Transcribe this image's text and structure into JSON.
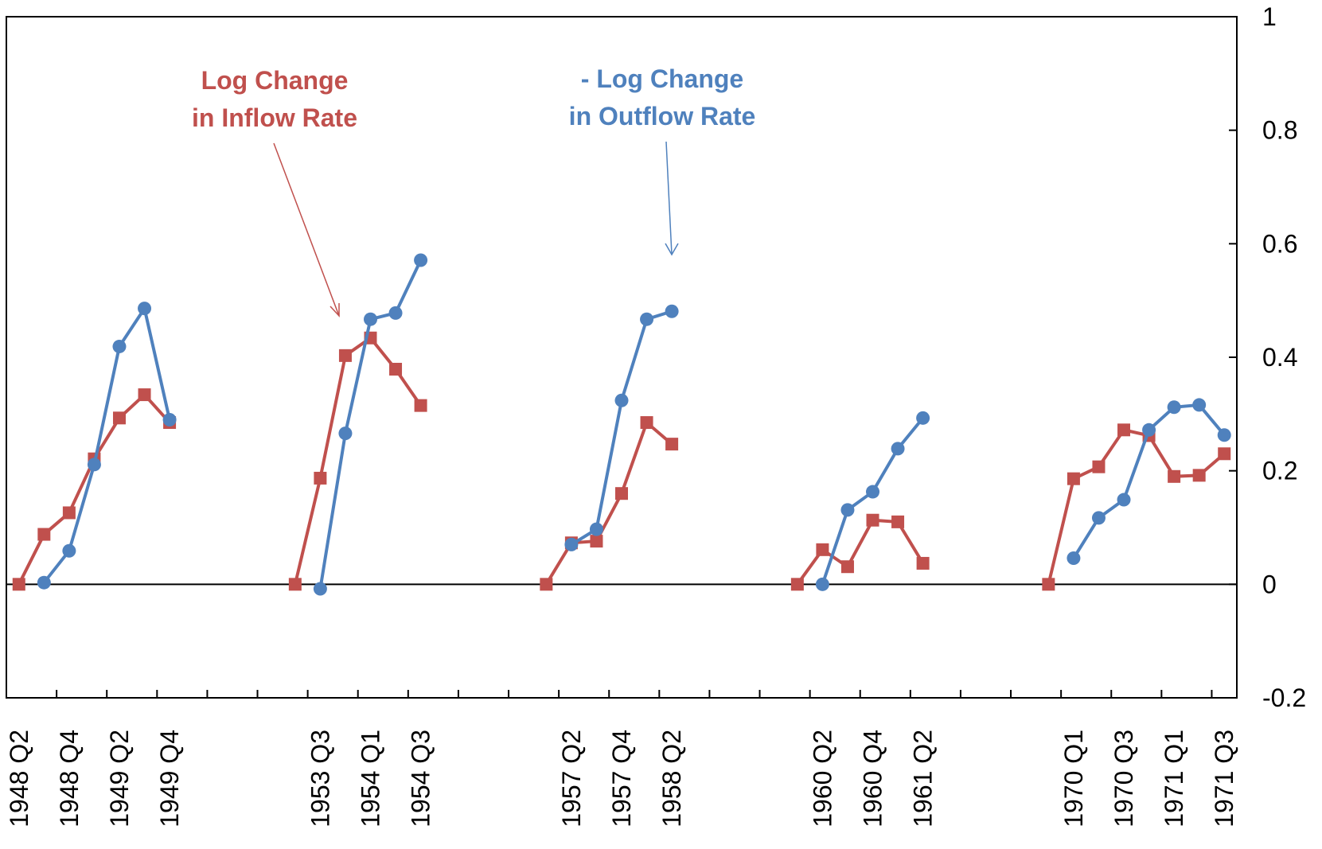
{
  "chart_data": {
    "type": "line",
    "annotations": [
      {
        "lines": [
          "Log Change",
          "in Inflow Rate"
        ],
        "color": "#c0504d"
      },
      {
        "lines": [
          "- Log Change",
          "in Outflow Rate"
        ],
        "color": "#4f81bd"
      }
    ],
    "categories": [
      "1948 Q2",
      null,
      "1948 Q4",
      null,
      "1949 Q2",
      null,
      "1949 Q4",
      null,
      null,
      null,
      null,
      null,
      "1953 Q3",
      null,
      "1954 Q1",
      null,
      "1954 Q3",
      null,
      null,
      null,
      null,
      null,
      "1957 Q2",
      null,
      "1957 Q4",
      null,
      "1958 Q2",
      null,
      null,
      null,
      null,
      null,
      "1960 Q2",
      null,
      "1960 Q4",
      null,
      "1961 Q2",
      null,
      null,
      null,
      null,
      null,
      "1970 Q1",
      null,
      "1970 Q3",
      null,
      "1971 Q1",
      null,
      "1971 Q3"
    ],
    "series": [
      {
        "name": "Log Change in Inflow Rate",
        "color": "#c0504d",
        "marker": "square",
        "values": [
          0,
          0.088,
          0.126,
          0.221,
          0.293,
          0.334,
          0.285,
          null,
          null,
          null,
          null,
          0,
          0.187,
          0.403,
          0.434,
          0.379,
          0.315,
          null,
          null,
          null,
          null,
          0,
          0.073,
          0.076,
          0.16,
          0.285,
          0.247,
          null,
          null,
          null,
          null,
          0,
          0.061,
          0.031,
          0.113,
          0.11,
          0.037,
          null,
          null,
          null,
          null,
          0,
          0.186,
          0.207,
          0.272,
          0.262,
          0.19,
          0.192,
          0.23
        ]
      },
      {
        "name": "- Log Change in Outflow Rate",
        "color": "#4f81bd",
        "marker": "circle",
        "values": [
          null,
          0.003,
          0.059,
          0.211,
          0.419,
          0.486,
          0.29,
          null,
          null,
          null,
          null,
          null,
          -0.008,
          0.266,
          0.467,
          0.478,
          0.571,
          null,
          null,
          null,
          null,
          null,
          0.07,
          0.097,
          0.324,
          0.467,
          0.481,
          null,
          null,
          null,
          null,
          null,
          0,
          0.131,
          0.163,
          0.239,
          0.293,
          null,
          null,
          null,
          null,
          null,
          0.046,
          0.117,
          0.149,
          0.272,
          0.312,
          0.316,
          0.263
        ]
      }
    ],
    "ylim": [
      -0.2,
      1
    ],
    "yticks": [
      -0.2,
      0,
      0.2,
      0.4,
      0.6,
      0.8,
      1
    ],
    "y_axis_side": "right"
  }
}
